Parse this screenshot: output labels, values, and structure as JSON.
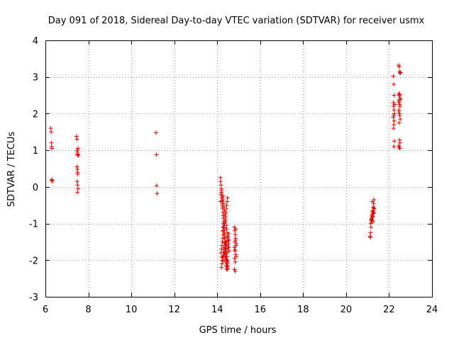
{
  "chart_data": {
    "type": "scatter",
    "title": "Day 091 of 2018, Sidereal Day-to-day VTEC variation (SDTVAR) for receiver usmx",
    "xlabel": "GPS time / hours",
    "ylabel": "SDTVAR / TECUs",
    "xlim": [
      6,
      24
    ],
    "ylim": [
      -3,
      4
    ],
    "xticks": [
      6,
      8,
      10,
      12,
      14,
      16,
      18,
      20,
      22,
      24
    ],
    "yticks": [
      -3,
      -2,
      -1,
      0,
      1,
      2,
      3,
      4
    ],
    "grid": true,
    "marker": "plus",
    "color": "#e00000",
    "series": [
      {
        "name": "SDTVAR",
        "x": [
          6.25,
          6.27,
          6.28,
          6.3,
          6.3,
          6.31,
          6.32,
          6.29,
          7.45,
          7.47,
          7.48,
          7.5,
          7.5,
          7.51,
          7.52,
          7.53,
          7.47,
          7.49,
          7.5,
          7.51,
          7.48,
          7.5,
          7.52,
          7.49,
          11.15,
          11.17,
          11.18,
          11.2,
          14.15,
          14.16,
          14.18,
          14.19,
          14.2,
          14.21,
          14.22,
          14.23,
          14.24,
          14.25,
          14.26,
          14.27,
          14.28,
          14.29,
          14.3,
          14.31,
          14.32,
          14.33,
          14.34,
          14.35,
          14.36,
          14.37,
          14.38,
          14.39,
          14.4,
          14.41,
          14.42,
          14.43,
          14.44,
          14.45,
          14.46,
          14.47,
          14.48,
          14.49,
          14.5,
          14.16,
          14.18,
          14.2,
          14.22,
          14.24,
          14.26,
          14.28,
          14.3,
          14.32,
          14.34,
          14.36,
          14.38,
          14.4,
          14.42,
          14.44,
          14.46,
          14.48,
          14.5,
          14.52,
          14.54,
          14.56,
          14.18,
          14.2,
          14.22,
          14.24,
          14.26,
          14.28,
          14.3,
          14.32,
          14.34,
          14.36,
          14.38,
          14.4,
          14.42,
          14.44,
          14.46,
          14.48,
          14.2,
          14.22,
          14.24,
          14.26,
          14.28,
          14.3,
          14.32,
          14.34,
          14.36,
          14.38,
          14.4,
          14.42,
          14.44,
          14.25,
          14.27,
          14.29,
          14.31,
          14.33,
          14.35,
          14.37,
          14.39,
          14.41,
          14.43,
          14.45,
          14.47,
          14.49,
          14.51,
          14.53,
          14.55,
          14.22,
          14.26,
          14.3,
          14.34,
          14.38,
          14.42,
          14.46,
          14.5,
          14.54,
          14.8,
          14.82,
          14.84,
          14.86,
          14.88,
          14.8,
          14.83,
          14.86,
          14.81,
          14.84,
          14.87,
          14.82,
          14.85,
          14.88,
          14.8,
          14.84,
          14.86,
          14.83,
          21.12,
          21.14,
          21.16,
          21.18,
          21.2,
          21.22,
          21.24,
          21.26,
          21.28,
          21.3,
          21.15,
          21.19,
          21.23,
          21.27,
          21.31,
          21.17,
          21.21,
          21.25,
          21.29,
          21.2,
          21.24,
          21.28,
          21.13,
          21.22,
          21.26,
          22.2,
          22.22,
          22.24,
          22.21,
          22.23,
          22.25,
          22.2,
          22.24,
          22.22,
          22.21,
          22.25,
          22.23,
          22.2,
          22.26,
          22.22,
          22.45,
          22.47,
          22.49,
          22.51,
          22.53,
          22.46,
          22.48,
          22.5,
          22.52,
          22.45,
          22.47,
          22.49,
          22.51,
          22.46,
          22.48,
          22.5,
          22.52,
          22.47,
          22.49,
          22.51,
          22.45,
          22.5,
          22.48,
          22.46,
          22.52,
          22.49
        ],
        "y": [
          1.6,
          1.5,
          1.2,
          1.05,
          0.2,
          0.18,
          0.15,
          1.1,
          1.38,
          1.3,
          1.0,
          0.95,
          0.9,
          0.88,
          1.05,
          0.85,
          0.55,
          0.48,
          0.4,
          0.35,
          0.15,
          0.05,
          -0.05,
          -0.15,
          1.48,
          0.88,
          0.03,
          -0.18,
          0.25,
          0.15,
          0.05,
          -0.05,
          -0.15,
          -0.25,
          -0.3,
          -0.38,
          -0.45,
          -0.55,
          -0.6,
          -0.7,
          -0.78,
          -0.85,
          -0.95,
          -1.05,
          -1.12,
          -1.2,
          -1.3,
          -1.38,
          -1.45,
          -1.52,
          -1.6,
          -1.68,
          -1.75,
          -1.82,
          -1.9,
          -1.98,
          -2.05,
          -2.1,
          -2.18,
          -2.22,
          -2.25,
          -2.15,
          -2.05,
          -0.4,
          -0.2,
          -0.1,
          -0.3,
          -0.5,
          -0.35,
          -0.25,
          -0.45,
          -0.55,
          -0.65,
          -0.75,
          -0.85,
          -0.95,
          -1.05,
          -1.15,
          -1.25,
          -1.35,
          -1.45,
          -1.55,
          -1.65,
          -1.75,
          -1.8,
          -1.7,
          -1.6,
          -1.5,
          -1.4,
          -1.3,
          -1.2,
          -1.1,
          -1.0,
          -0.9,
          -0.8,
          -0.7,
          -0.6,
          -0.5,
          -0.4,
          -0.3,
          -2.2,
          -2.1,
          -2.0,
          -1.9,
          -1.8,
          -1.7,
          -1.65,
          -1.55,
          -1.85,
          -1.95,
          -2.05,
          -2.15,
          -2.25,
          -1.2,
          -1.1,
          -1.0,
          -0.95,
          -1.3,
          -1.4,
          -1.5,
          -1.6,
          -1.7,
          -1.8,
          -1.9,
          -2.0,
          -1.75,
          -1.65,
          -1.55,
          -1.45,
          -1.92,
          -2.02,
          -1.88,
          -1.78,
          -1.68,
          -1.58,
          -1.48,
          -1.38,
          -1.28,
          -1.1,
          -1.2,
          -1.3,
          -1.45,
          -1.55,
          -1.65,
          -1.75,
          -1.85,
          -1.95,
          -2.05,
          -1.6,
          -1.5,
          -1.4,
          -1.9,
          -2.25,
          -2.3,
          -1.15,
          -1.72,
          -1.35,
          -1.25,
          -1.1,
          -0.95,
          -0.85,
          -0.75,
          -0.65,
          -0.55,
          -0.45,
          -0.35,
          -1.0,
          -0.9,
          -0.8,
          -0.7,
          -0.6,
          -0.88,
          -0.78,
          -0.68,
          -0.58,
          -0.92,
          -0.82,
          -0.72,
          -1.38,
          -0.4,
          -0.95,
          3.02,
          2.8,
          2.5,
          2.2,
          2.1,
          2.0,
          1.9,
          1.8,
          1.7,
          1.6,
          1.25,
          1.1,
          2.3,
          2.25,
          1.95,
          3.32,
          3.28,
          3.15,
          3.1,
          3.12,
          2.55,
          2.5,
          2.45,
          2.4,
          2.35,
          2.3,
          2.25,
          2.2,
          2.1,
          2.0,
          1.95,
          1.85,
          1.75,
          1.28,
          1.2,
          1.12,
          1.05,
          1.08,
          2.05,
          2.38,
          2.52
        ]
      }
    ]
  }
}
